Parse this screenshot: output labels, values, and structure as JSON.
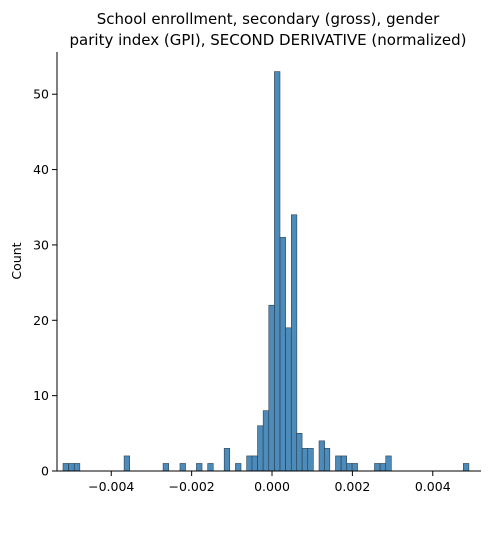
{
  "chart_data": {
    "type": "bar",
    "title_lines": [
      "School enrollment, secondary (gross), gender",
      "parity index (GPI), SECOND DERIVATIVE (normalized)"
    ],
    "xlabel": "",
    "ylabel": "Count",
    "xlim": [
      -0.00535,
      0.0052
    ],
    "ylim": [
      0,
      55.6
    ],
    "xticks": [
      -0.004,
      -0.002,
      0.0,
      0.002,
      0.004
    ],
    "xtick_labels": [
      "−0.004",
      "−0.002",
      "0.000",
      "0.002",
      "0.004"
    ],
    "yticks": [
      0,
      10,
      20,
      30,
      40,
      50
    ],
    "ytick_labels": [
      "0",
      "10",
      "20",
      "30",
      "40",
      "50"
    ],
    "bin_width": 0.000138,
    "bin_starts": [
      -0.0052,
      -0.00506,
      -0.00492,
      -0.00368,
      -0.00271,
      -0.00229,
      -0.00188,
      -0.0016,
      -0.00119,
      -0.00091,
      -0.00063,
      -0.0005,
      -0.00036,
      -0.00022,
      -8e-05,
      6e-05,
      0.0002,
      0.00034,
      0.00048,
      0.00061,
      0.00075,
      0.00089,
      0.00117,
      0.0013,
      0.00158,
      0.00172,
      0.00186,
      0.00199,
      0.00255,
      0.00269,
      0.00283,
      0.00476
    ],
    "counts": [
      1,
      1,
      1,
      2,
      1,
      1,
      1,
      1,
      3,
      1,
      2,
      2,
      6,
      8,
      22,
      53,
      31,
      19,
      34,
      5,
      3,
      3,
      4,
      3,
      2,
      2,
      1,
      1,
      1,
      1,
      2,
      1
    ],
    "grid": false,
    "legend": "none",
    "bar_color": "#3a7fb3"
  }
}
